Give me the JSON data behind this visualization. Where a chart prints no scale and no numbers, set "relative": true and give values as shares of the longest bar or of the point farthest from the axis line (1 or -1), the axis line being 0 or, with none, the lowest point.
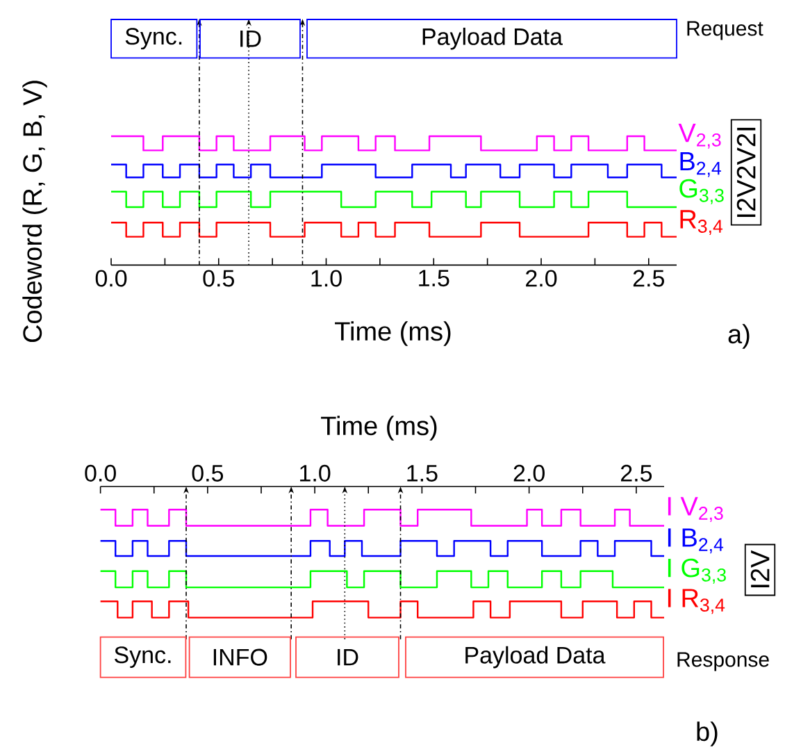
{
  "chart_data": [
    {
      "type": "step",
      "relative": true,
      "legend": false,
      "ylabel": "Codeword (R, G, B, V)",
      "xlabel": "Time (ms)",
      "xlim": [
        0,
        2.63
      ],
      "xticks": [
        {
          "value": 0,
          "label": "0.0"
        },
        {
          "value": 0.25,
          "label": null
        },
        {
          "value": 0.5,
          "label": "0.5"
        },
        {
          "value": 0.75,
          "label": null
        },
        {
          "value": 1,
          "label": "1.0"
        },
        {
          "value": 1.25,
          "label": null
        },
        {
          "value": 1.5,
          "label": "1.5"
        },
        {
          "value": 1.75,
          "label": null
        },
        {
          "value": 2,
          "label": "2.0"
        },
        {
          "value": 2.25,
          "label": null
        },
        {
          "value": 2.5,
          "label": "2.5"
        }
      ],
      "series": [
        {
          "name": "V$_{2,3}$",
          "color": "#ff00ff",
          "x": [
            0,
            0.15,
            0.24,
            0.41,
            0.49,
            0.57,
            0.74,
            0.9,
            0.98,
            1.15,
            1.23,
            1.32,
            1.48,
            1.72,
            1.98,
            2.06,
            2.14,
            2.22,
            2.4,
            2.48,
            2.63
          ],
          "values": [
            1,
            0.89,
            1,
            0.89,
            1,
            0.89,
            1,
            0.89,
            1,
            0.89,
            1,
            0.89,
            1,
            0.89,
            1,
            0.89,
            1,
            0.89,
            1,
            0.89,
            0.89
          ]
        },
        {
          "name": "B$_{2,4}$",
          "color": "#0000ff",
          "x": [
            0,
            0.07,
            0.15,
            0.24,
            0.32,
            0.41,
            0.49,
            0.57,
            0.65,
            0.74,
            0.98,
            1.23,
            1.4,
            1.58,
            1.65,
            1.81,
            1.9,
            2.06,
            2.14,
            2.31,
            2.4,
            2.56,
            2.63
          ],
          "values": [
            0.78,
            0.68,
            0.78,
            0.68,
            0.78,
            0.68,
            0.78,
            0.68,
            0.78,
            0.68,
            0.78,
            0.68,
            0.78,
            0.68,
            0.78,
            0.68,
            0.78,
            0.68,
            0.78,
            0.68,
            0.78,
            0.68,
            0.68
          ]
        },
        {
          "name": "G$_{3,3}$",
          "color": "#00ff00",
          "x": [
            0,
            0.07,
            0.15,
            0.24,
            0.32,
            0.41,
            0.49,
            0.65,
            0.74,
            1.07,
            1.23,
            1.4,
            1.49,
            1.65,
            1.72,
            1.9,
            2.06,
            2.14,
            2.22,
            2.4,
            2.63
          ],
          "values": [
            0.57,
            0.45,
            0.57,
            0.45,
            0.57,
            0.45,
            0.57,
            0.45,
            0.57,
            0.45,
            0.57,
            0.45,
            0.57,
            0.45,
            0.57,
            0.45,
            0.57,
            0.45,
            0.57,
            0.45,
            0.45
          ]
        },
        {
          "name": "R$_{3,4}$",
          "color": "#ff0000",
          "x": [
            0,
            0.07,
            0.15,
            0.24,
            0.32,
            0.41,
            0.49,
            0.74,
            0.9,
            1.07,
            1.15,
            1.23,
            1.32,
            1.48,
            1.72,
            1.9,
            2.22,
            2.4,
            2.48,
            2.56,
            2.63
          ],
          "values": [
            0.33,
            0.22,
            0.33,
            0.22,
            0.33,
            0.22,
            0.33,
            0.22,
            0.33,
            0.22,
            0.33,
            0.22,
            0.33,
            0.22,
            0.33,
            0.22,
            0.33,
            0.22,
            0.33,
            0.22,
            0.22
          ]
        }
      ],
      "ref_lines": [
        {
          "axis": "x",
          "value": 0.41,
          "line_style": "dashdot"
        },
        {
          "axis": "x",
          "value": 0.64,
          "line_style": "dotted"
        },
        {
          "axis": "x",
          "value": 0.89,
          "line_style": "dashdot"
        }
      ],
      "annotations": [
        "Sync.",
        "ID",
        "Payload Data",
        "Request",
        "I2V2V2I",
        "a)"
      ]
    },
    {
      "type": "step",
      "relative": true,
      "legend": false,
      "xlabel": "Time (ms)",
      "xlim": [
        0,
        2.63
      ],
      "xticks": [
        {
          "value": 0,
          "label": "0.0"
        },
        {
          "value": 0.25,
          "label": null
        },
        {
          "value": 0.5,
          "label": "0.5"
        },
        {
          "value": 0.75,
          "label": null
        },
        {
          "value": 1,
          "label": "1.0"
        },
        {
          "value": 1.25,
          "label": null
        },
        {
          "value": 1.5,
          "label": "1.5"
        },
        {
          "value": 1.75,
          "label": null
        },
        {
          "value": 2,
          "label": "2.0"
        },
        {
          "value": 2.25,
          "label": null
        },
        {
          "value": 2.5,
          "label": "2.5"
        }
      ],
      "series": [
        {
          "name": "I V$_{2,3}$",
          "color": "#ff00ff",
          "x": [
            0,
            0.07,
            0.15,
            0.22,
            0.32,
            0.4,
            0.98,
            1.06,
            1.23,
            1.4,
            1.48,
            1.73,
            1.99,
            2.06,
            2.15,
            2.24,
            2.4,
            2.47,
            2.63
          ],
          "values": [
            1,
            0.85,
            1,
            0.85,
            1,
            0.85,
            1,
            0.85,
            1,
            0.85,
            1,
            0.85,
            1,
            0.85,
            1,
            0.85,
            1,
            0.85,
            0.85
          ]
        },
        {
          "name": "I B$_{2,4}$",
          "color": "#0000ff",
          "x": [
            0,
            0.07,
            0.15,
            0.22,
            0.32,
            0.4,
            0.98,
            1.07,
            1.14,
            1.22,
            1.4,
            1.57,
            1.65,
            1.82,
            1.9,
            2.06,
            2.24,
            2.32,
            2.4,
            2.57,
            2.63
          ],
          "values": [
            0.71,
            0.57,
            0.71,
            0.57,
            0.71,
            0.57,
            0.71,
            0.57,
            0.71,
            0.57,
            0.71,
            0.57,
            0.71,
            0.57,
            0.71,
            0.57,
            0.71,
            0.57,
            0.71,
            0.57,
            0.57
          ]
        },
        {
          "name": "I G$_{3,3}$",
          "color": "#00ff00",
          "x": [
            0,
            0.07,
            0.15,
            0.22,
            0.32,
            0.4,
            0.98,
            1.15,
            1.23,
            1.4,
            1.57,
            1.73,
            1.81,
            1.9,
            2.06,
            2.15,
            2.24,
            2.39,
            2.63
          ],
          "values": [
            0.43,
            0.28,
            0.43,
            0.28,
            0.43,
            0.28,
            0.43,
            0.28,
            0.43,
            0.28,
            0.43,
            0.28,
            0.43,
            0.28,
            0.43,
            0.28,
            0.43,
            0.28,
            0.28
          ]
        },
        {
          "name": "I R$_{3,4}$",
          "color": "#ff0000",
          "x": [
            0,
            0.08,
            0.15,
            0.24,
            0.32,
            0.41,
            0.99,
            1.25,
            1.4,
            1.48,
            1.74,
            1.82,
            1.91,
            2.15,
            2.25,
            2.41,
            2.49,
            2.57,
            2.63
          ],
          "values": [
            0.15,
            0,
            0.15,
            0,
            0.15,
            0,
            0.15,
            0,
            0.15,
            0,
            0.15,
            0,
            0.15,
            0,
            0.15,
            0,
            0.15,
            0,
            0
          ]
        }
      ],
      "ref_lines": [
        {
          "axis": "x",
          "value": 0.4,
          "line_style": "dashdot"
        },
        {
          "axis": "x",
          "value": 0.89,
          "line_style": "dashdot"
        },
        {
          "axis": "x",
          "value": 1.14,
          "line_style": "dotted"
        },
        {
          "axis": "x",
          "value": 1.4,
          "line_style": "dashdot"
        }
      ],
      "annotations": [
        "Sync.",
        "INFO",
        "ID",
        "Payload Data",
        "Response",
        "I2V",
        "b)"
      ]
    }
  ]
}
